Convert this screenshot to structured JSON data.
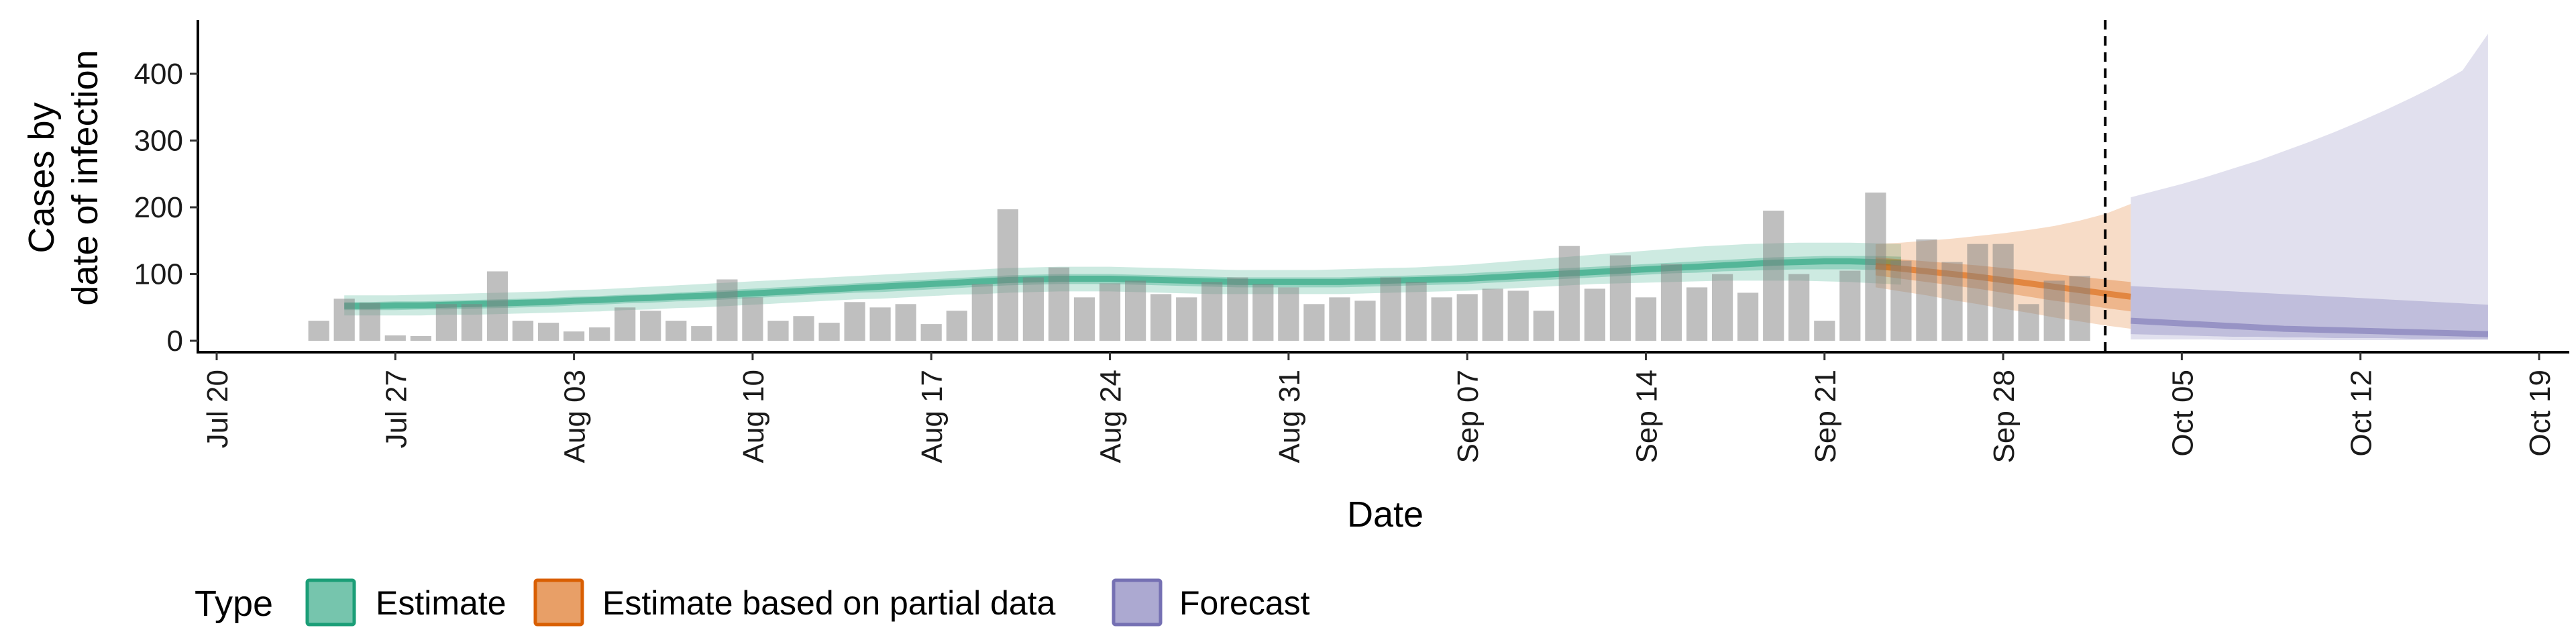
{
  "chart_data": {
    "type": "bar",
    "xlabel": "Date",
    "ylabel_lines": [
      "Cases by",
      "date of infection"
    ],
    "ylim": [
      0,
      480
    ],
    "y_ticks": [
      0,
      100,
      200,
      300,
      400
    ],
    "x_range": [
      "2020-07-20",
      "2020-10-19"
    ],
    "x_ticks": [
      {
        "date": "2020-07-20",
        "label": "Jul 20"
      },
      {
        "date": "2020-07-27",
        "label": "Jul 27"
      },
      {
        "date": "2020-08-03",
        "label": "Aug 03"
      },
      {
        "date": "2020-08-10",
        "label": "Aug 10"
      },
      {
        "date": "2020-08-17",
        "label": "Aug 17"
      },
      {
        "date": "2020-08-24",
        "label": "Aug 24"
      },
      {
        "date": "2020-08-31",
        "label": "Aug 31"
      },
      {
        "date": "2020-09-07",
        "label": "Sep 07"
      },
      {
        "date": "2020-09-14",
        "label": "Sep 14"
      },
      {
        "date": "2020-09-21",
        "label": "Sep 21"
      },
      {
        "date": "2020-09-28",
        "label": "Sep 28"
      },
      {
        "date": "2020-10-05",
        "label": "Oct 05"
      },
      {
        "date": "2020-10-12",
        "label": "Oct 12"
      },
      {
        "date": "2020-10-19",
        "label": "Oct 19"
      }
    ],
    "vline_date": "2020-10-02",
    "observed_cases": {
      "start_date": "2020-07-24",
      "values": [
        30,
        63,
        57,
        8,
        7,
        55,
        55,
        104,
        30,
        27,
        14,
        20,
        50,
        45,
        30,
        22,
        92,
        65,
        30,
        37,
        27,
        58,
        50,
        55,
        25,
        45,
        85,
        197,
        95,
        110,
        65,
        86,
        90,
        70,
        65,
        88,
        95,
        85,
        80,
        55,
        65,
        60,
        95,
        88,
        65,
        70,
        78,
        75,
        45,
        142,
        78,
        128,
        65,
        115,
        80,
        100,
        72,
        195,
        100,
        30,
        105,
        222,
        120,
        152,
        118,
        145,
        145,
        55,
        90,
        97
      ]
    },
    "series": [
      {
        "name": "Estimate",
        "color": "#1B9E77",
        "start_date": "2020-07-25",
        "median": [
          52,
          52,
          53,
          53,
          54,
          55,
          56,
          57,
          58,
          60,
          61,
          63,
          64,
          66,
          67,
          69,
          71,
          73,
          75,
          77,
          79,
          81,
          83,
          85,
          87,
          89,
          91,
          92,
          93,
          93,
          93,
          92,
          91,
          90,
          89,
          88,
          88,
          88,
          88,
          88,
          89,
          90,
          91,
          92,
          93,
          95,
          97,
          99,
          101,
          103,
          105,
          107,
          109,
          111,
          113,
          115,
          117,
          118,
          119,
          119,
          118,
          117
        ],
        "lower_90": [
          38,
          38,
          38,
          38,
          39,
          39,
          40,
          41,
          42,
          43,
          44,
          46,
          47,
          49,
          50,
          52,
          54,
          56,
          58,
          60,
          62,
          63,
          65,
          67,
          69,
          70,
          72,
          73,
          74,
          74,
          74,
          73,
          72,
          71,
          70,
          70,
          70,
          70,
          70,
          70,
          71,
          72,
          73,
          74,
          75,
          77,
          79,
          81,
          83,
          85,
          86,
          87,
          88,
          89,
          90,
          90,
          90,
          90,
          89,
          88,
          86,
          84
        ],
        "upper_90": [
          68,
          68,
          68,
          69,
          70,
          71,
          72,
          73,
          74,
          76,
          77,
          79,
          81,
          83,
          85,
          87,
          89,
          91,
          93,
          95,
          97,
          99,
          101,
          103,
          105,
          107,
          109,
          110,
          111,
          111,
          111,
          110,
          109,
          108,
          107,
          106,
          106,
          106,
          106,
          107,
          108,
          109,
          110,
          112,
          114,
          117,
          120,
          123,
          126,
          129,
          132,
          135,
          138,
          141,
          143,
          145,
          146,
          147,
          147,
          147,
          146,
          145
        ],
        "lower_50": [
          46,
          46,
          46,
          47,
          47,
          48,
          49,
          50,
          51,
          53,
          54,
          56,
          57,
          59,
          60,
          62,
          64,
          66,
          68,
          70,
          72,
          73,
          75,
          77,
          79,
          81,
          83,
          84,
          85,
          85,
          85,
          84,
          83,
          82,
          81,
          80,
          80,
          80,
          80,
          80,
          81,
          82,
          83,
          84,
          85,
          87,
          89,
          91,
          93,
          95,
          97,
          99,
          101,
          102,
          104,
          105,
          106,
          107,
          107,
          107,
          106,
          105
        ],
        "upper_50": [
          58,
          58,
          59,
          59,
          60,
          61,
          62,
          63,
          64,
          66,
          67,
          69,
          70,
          72,
          74,
          76,
          78,
          80,
          82,
          84,
          86,
          88,
          90,
          92,
          94,
          96,
          98,
          99,
          100,
          100,
          100,
          99,
          98,
          97,
          96,
          95,
          95,
          95,
          95,
          95,
          96,
          97,
          98,
          99,
          101,
          103,
          105,
          107,
          109,
          111,
          113,
          115,
          117,
          119,
          121,
          123,
          125,
          126,
          127,
          127,
          127,
          126
        ]
      },
      {
        "name": "Estimate based on partial data",
        "color": "#D95F02",
        "start_date": "2020-09-23",
        "median": [
          112,
          108,
          104,
          100,
          96,
          91,
          86,
          81,
          76,
          71,
          66
        ],
        "lower_90": [
          80,
          74,
          68,
          61,
          55,
          48,
          42,
          35,
          29,
          23,
          18
        ],
        "upper_90": [
          145,
          147,
          150,
          153,
          157,
          161,
          166,
          172,
          180,
          190,
          205
        ],
        "lower_50": [
          98,
          93,
          88,
          83,
          78,
          72,
          66,
          60,
          55,
          49,
          44
        ],
        "upper_50": [
          125,
          122,
          119,
          116,
          113,
          109,
          105,
          100,
          96,
          92,
          88
        ]
      },
      {
        "name": "Forecast",
        "color": "#7570B3",
        "start_date": "2020-10-03",
        "median": [
          30,
          28,
          26,
          24,
          22,
          20,
          18,
          17,
          16,
          15,
          14,
          13,
          12,
          11,
          10
        ],
        "lower_90": [
          2,
          2,
          2,
          2,
          1,
          1,
          1,
          1,
          1,
          1,
          1,
          1,
          1,
          1,
          1
        ],
        "upper_90": [
          215,
          225,
          235,
          246,
          258,
          270,
          284,
          298,
          313,
          329,
          346,
          364,
          383,
          405,
          460
        ],
        "lower_50": [
          10,
          9,
          8,
          7,
          6,
          6,
          5,
          5,
          4,
          4,
          4,
          3,
          3,
          3,
          3
        ],
        "upper_50": [
          82,
          80,
          78,
          76,
          74,
          72,
          70,
          68,
          66,
          64,
          62,
          60,
          58,
          56,
          54
        ]
      }
    ],
    "legend": {
      "title": "Type",
      "position": "bottom",
      "items": [
        {
          "label": "Estimate",
          "color": "#1B9E77"
        },
        {
          "label": "Estimate based on partial data",
          "color": "#D95F02"
        },
        {
          "label": "Forecast",
          "color": "#7570B3"
        }
      ]
    },
    "grid": false
  }
}
